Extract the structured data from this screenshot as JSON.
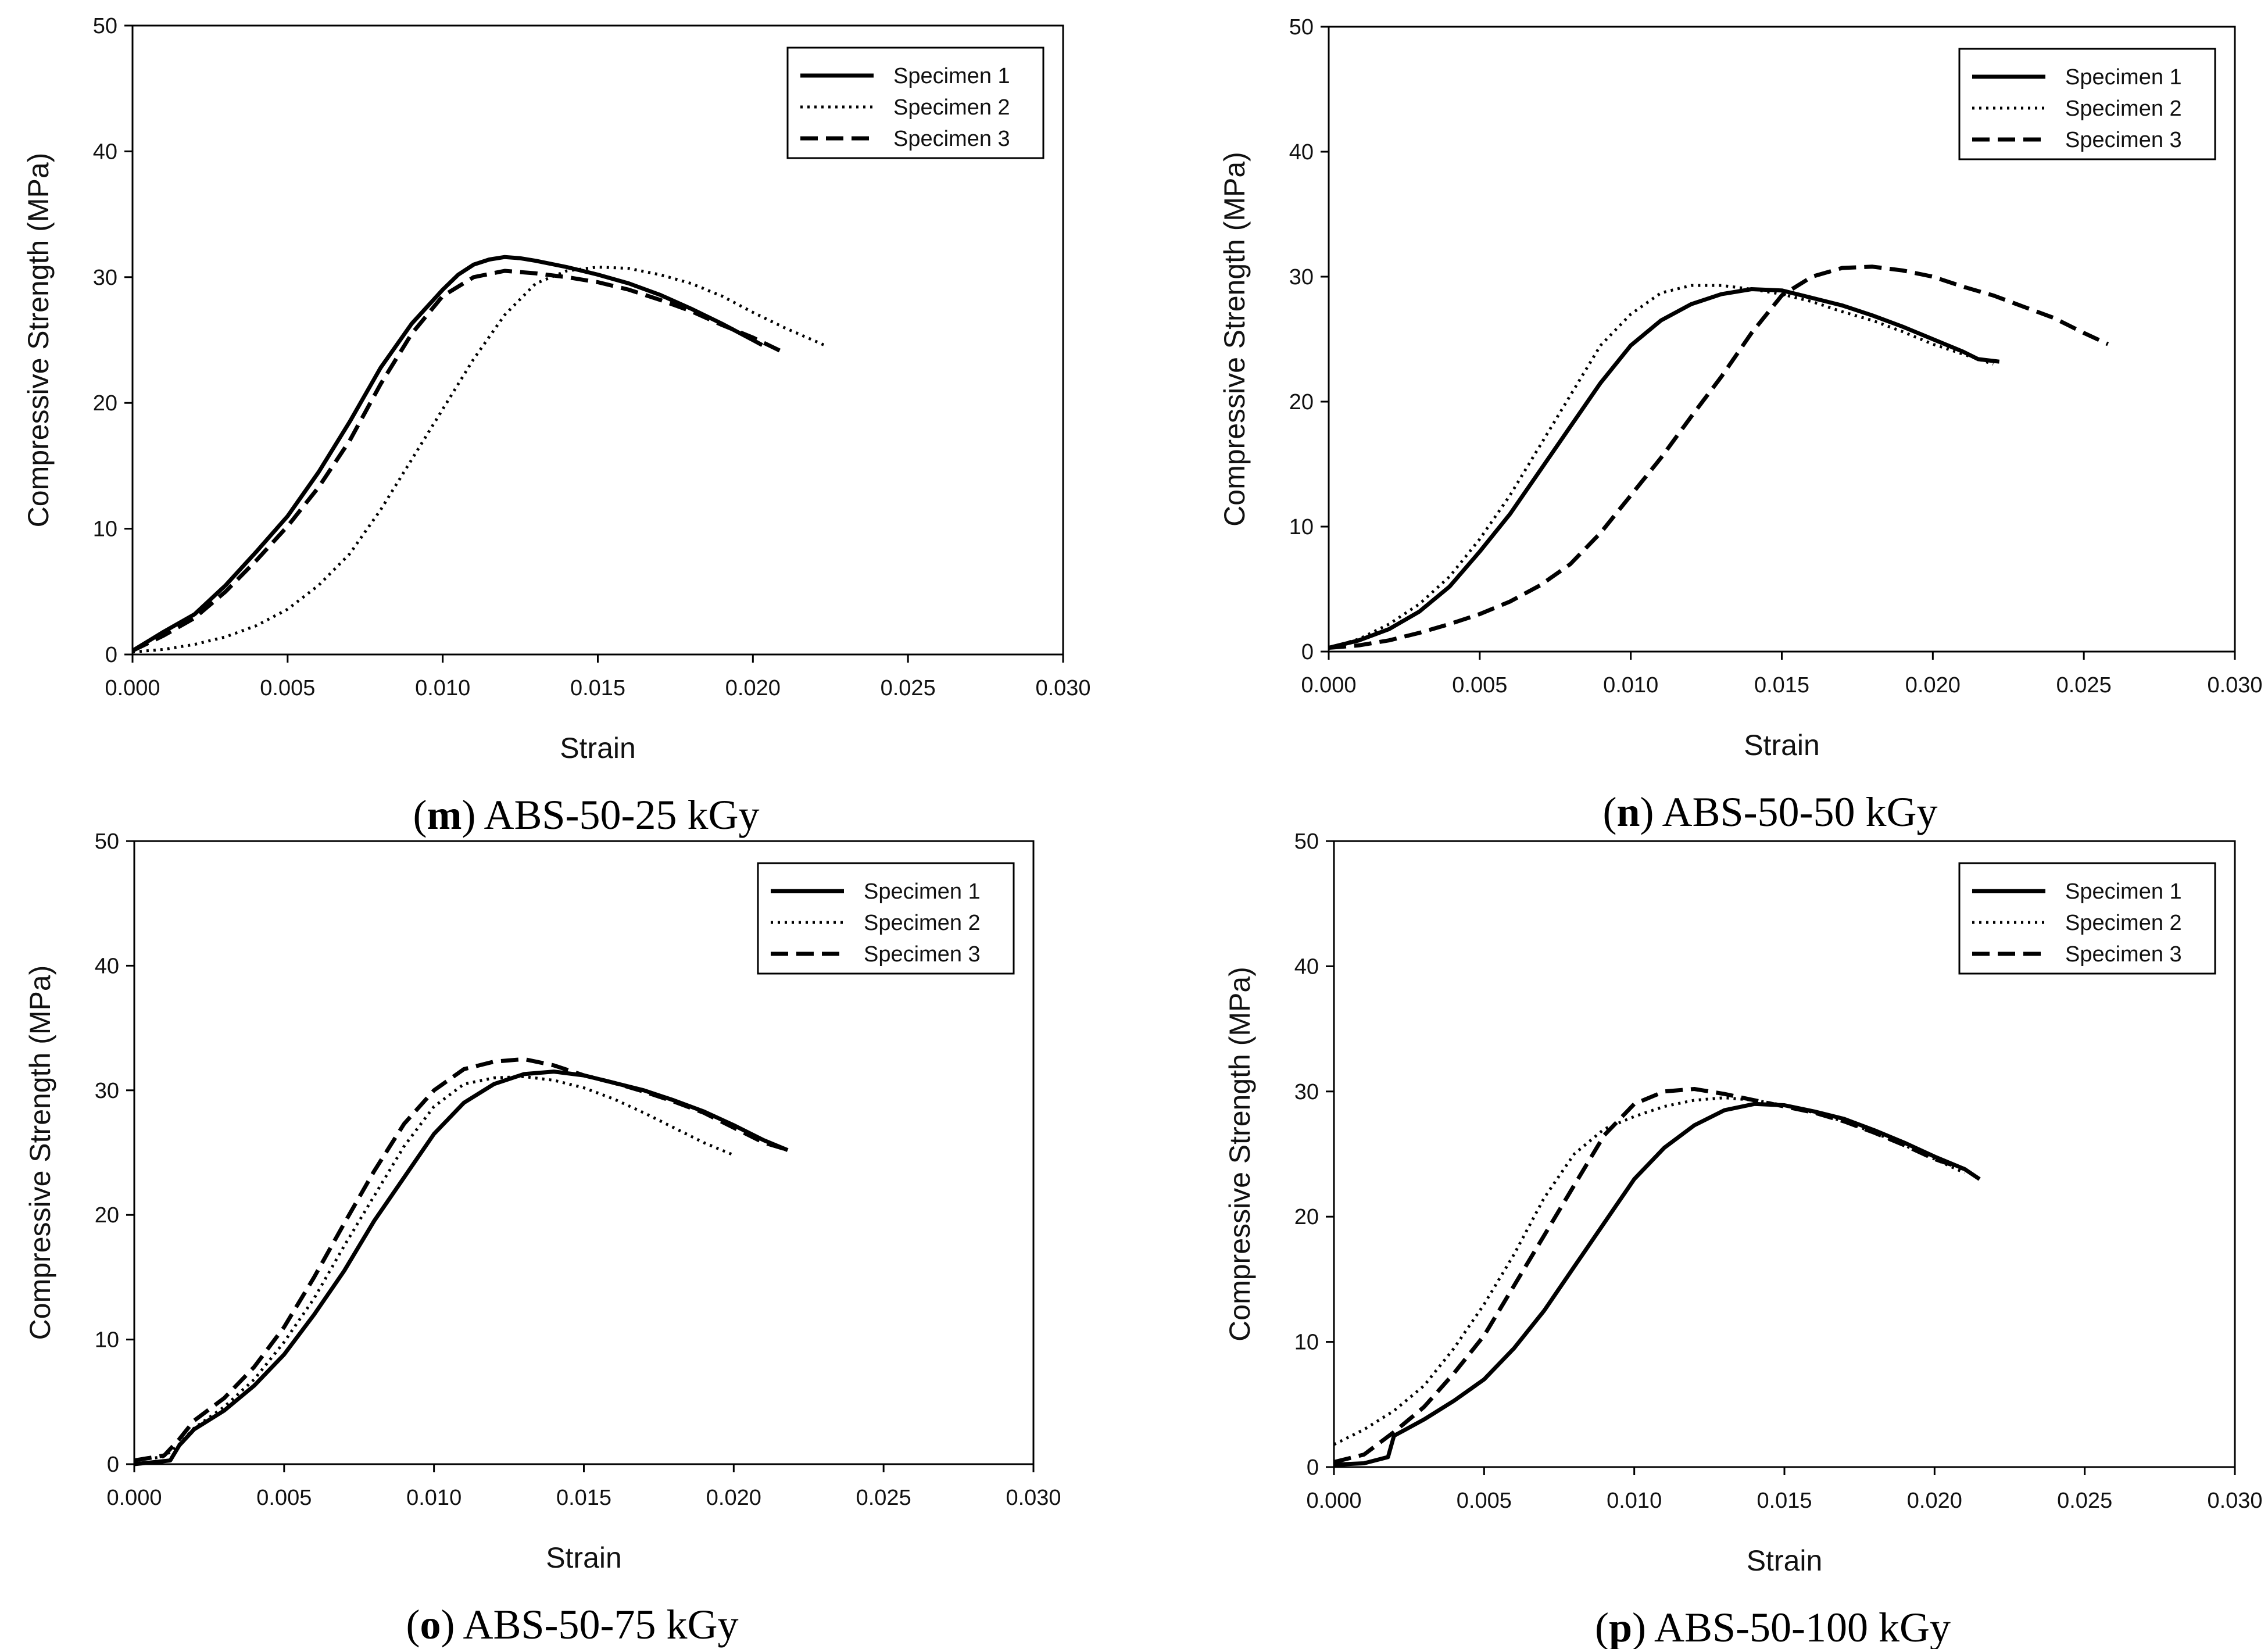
{
  "chart_data": [
    {
      "type": "line",
      "panel_letter": "m",
      "caption": "ABS-50-25 kGy",
      "xlabel": "Strain",
      "ylabel": "Compressive Strength (MPa)",
      "xlim": [
        0,
        0.03
      ],
      "ylim": [
        0,
        50
      ],
      "xticks": [
        "0.000",
        "0.005",
        "0.010",
        "0.015",
        "0.020",
        "0.025",
        "0.030"
      ],
      "yticks": [
        "0",
        "10",
        "20",
        "30",
        "40",
        "50"
      ],
      "legend_position": "top-right",
      "series": [
        {
          "name": "Specimen 1",
          "style": "solid",
          "x": [
            0,
            0.001,
            0.002,
            0.003,
            0.004,
            0.005,
            0.006,
            0.007,
            0.008,
            0.009,
            0.01,
            0.0105,
            0.011,
            0.0115,
            0.012,
            0.0125,
            0.013,
            0.014,
            0.015,
            0.016,
            0.017,
            0.018,
            0.019,
            0.02,
            0.0203
          ],
          "y": [
            0.3,
            1.8,
            3.2,
            5.5,
            8.2,
            11.0,
            14.5,
            18.5,
            22.8,
            26.3,
            29.0,
            30.2,
            31.0,
            31.4,
            31.6,
            31.5,
            31.3,
            30.8,
            30.2,
            29.5,
            28.6,
            27.5,
            26.3,
            25.0,
            24.6
          ]
        },
        {
          "name": "Specimen 2",
          "style": "dotted",
          "x": [
            0,
            0.001,
            0.002,
            0.003,
            0.004,
            0.005,
            0.006,
            0.007,
            0.008,
            0.009,
            0.01,
            0.011,
            0.012,
            0.013,
            0.014,
            0.015,
            0.016,
            0.017,
            0.018,
            0.019,
            0.02,
            0.021,
            0.0223
          ],
          "y": [
            0.2,
            0.4,
            0.8,
            1.4,
            2.3,
            3.6,
            5.5,
            8.0,
            11.5,
            15.5,
            19.5,
            23.5,
            27.0,
            29.5,
            30.5,
            30.8,
            30.7,
            30.2,
            29.5,
            28.5,
            27.2,
            26.0,
            24.6
          ]
        },
        {
          "name": "Specimen 3",
          "style": "dashed",
          "x": [
            0,
            0.001,
            0.002,
            0.003,
            0.004,
            0.005,
            0.006,
            0.007,
            0.008,
            0.009,
            0.01,
            0.011,
            0.012,
            0.013,
            0.014,
            0.015,
            0.016,
            0.017,
            0.018,
            0.019,
            0.02,
            0.021
          ],
          "y": [
            0.3,
            1.5,
            2.9,
            5.0,
            7.5,
            10.2,
            13.3,
            17.0,
            21.5,
            25.5,
            28.5,
            30.0,
            30.5,
            30.3,
            30.0,
            29.6,
            29.0,
            28.2,
            27.3,
            26.2,
            25.2,
            24.0
          ]
        }
      ]
    },
    {
      "type": "line",
      "panel_letter": "n",
      "caption": "ABS-50-50 kGy",
      "xlabel": "Strain",
      "ylabel": "Compressive Strength (MPa)",
      "xlim": [
        0,
        0.03
      ],
      "ylim": [
        0,
        50
      ],
      "xticks": [
        "0.000",
        "0.005",
        "0.010",
        "0.015",
        "0.020",
        "0.025",
        "0.030"
      ],
      "yticks": [
        "0",
        "10",
        "20",
        "30",
        "40",
        "50"
      ],
      "legend_position": "top-right",
      "series": [
        {
          "name": "Specimen 1",
          "style": "solid",
          "x": [
            0,
            0.001,
            0.002,
            0.003,
            0.004,
            0.005,
            0.006,
            0.007,
            0.008,
            0.009,
            0.01,
            0.011,
            0.012,
            0.013,
            0.014,
            0.015,
            0.016,
            0.017,
            0.018,
            0.019,
            0.02,
            0.021,
            0.0215,
            0.0222
          ],
          "y": [
            0.3,
            0.9,
            1.8,
            3.2,
            5.2,
            8.0,
            11.0,
            14.5,
            18.0,
            21.5,
            24.5,
            26.5,
            27.8,
            28.6,
            29.0,
            28.9,
            28.3,
            27.7,
            26.9,
            26.0,
            25.0,
            24.0,
            23.4,
            23.2
          ]
        },
        {
          "name": "Specimen 2",
          "style": "dotted",
          "x": [
            0,
            0.001,
            0.002,
            0.003,
            0.004,
            0.005,
            0.006,
            0.007,
            0.008,
            0.009,
            0.01,
            0.011,
            0.012,
            0.013,
            0.014,
            0.015,
            0.016,
            0.017,
            0.018,
            0.019,
            0.02,
            0.021,
            0.022
          ],
          "y": [
            0.3,
            1.0,
            2.2,
            3.8,
            6.0,
            9.0,
            12.5,
            16.5,
            20.5,
            24.5,
            27.0,
            28.7,
            29.3,
            29.3,
            29.0,
            28.6,
            28.0,
            27.2,
            26.5,
            25.6,
            24.6,
            23.8,
            23.0
          ]
        },
        {
          "name": "Specimen 3",
          "style": "dashed",
          "x": [
            0,
            0.001,
            0.002,
            0.003,
            0.004,
            0.005,
            0.006,
            0.007,
            0.008,
            0.009,
            0.01,
            0.011,
            0.012,
            0.013,
            0.014,
            0.015,
            0.016,
            0.017,
            0.018,
            0.019,
            0.02,
            0.021,
            0.022,
            0.023,
            0.024,
            0.025,
            0.0258
          ],
          "y": [
            0.3,
            0.5,
            0.9,
            1.5,
            2.2,
            3.0,
            4.0,
            5.3,
            7.0,
            9.5,
            12.5,
            15.5,
            18.8,
            22.0,
            25.5,
            28.5,
            30.0,
            30.7,
            30.8,
            30.5,
            30.0,
            29.2,
            28.5,
            27.6,
            26.7,
            25.5,
            24.6
          ]
        }
      ]
    },
    {
      "type": "line",
      "panel_letter": "o",
      "caption": "ABS-50-75 kGy",
      "xlabel": "Strain",
      "ylabel": "Compressive Strength (MPa)",
      "xlim": [
        0,
        0.03
      ],
      "ylim": [
        0,
        50
      ],
      "xticks": [
        "0.000",
        "0.005",
        "0.010",
        "0.015",
        "0.020",
        "0.025",
        "0.030"
      ],
      "yticks": [
        "0",
        "10",
        "20",
        "30",
        "40",
        "50"
      ],
      "legend_position": "top-right",
      "series": [
        {
          "name": "Specimen 1",
          "style": "solid",
          "x": [
            0,
            0.0012,
            0.0015,
            0.002,
            0.003,
            0.004,
            0.005,
            0.006,
            0.007,
            0.008,
            0.009,
            0.01,
            0.011,
            0.012,
            0.013,
            0.014,
            0.015,
            0.016,
            0.017,
            0.018,
            0.019,
            0.02,
            0.021,
            0.0218
          ],
          "y": [
            0,
            0.3,
            1.5,
            2.8,
            4.3,
            6.3,
            8.8,
            12.0,
            15.5,
            19.5,
            23.0,
            26.5,
            29.0,
            30.5,
            31.3,
            31.5,
            31.2,
            30.6,
            30.0,
            29.2,
            28.3,
            27.2,
            26.0,
            25.2
          ]
        },
        {
          "name": "Specimen 2",
          "style": "dotted",
          "x": [
            0,
            0.001,
            0.0015,
            0.002,
            0.003,
            0.004,
            0.005,
            0.006,
            0.007,
            0.008,
            0.009,
            0.01,
            0.011,
            0.012,
            0.013,
            0.014,
            0.015,
            0.016,
            0.017,
            0.018,
            0.019,
            0.02
          ],
          "y": [
            0.3,
            0.6,
            1.6,
            2.9,
            4.6,
            6.8,
            9.8,
            13.3,
            17.5,
            21.5,
            25.5,
            28.7,
            30.5,
            31.0,
            31.1,
            30.8,
            30.2,
            29.3,
            28.2,
            27.0,
            25.8,
            24.8
          ]
        },
        {
          "name": "Specimen 3",
          "style": "dashed",
          "x": [
            0,
            0.001,
            0.0015,
            0.002,
            0.003,
            0.004,
            0.005,
            0.006,
            0.007,
            0.008,
            0.009,
            0.01,
            0.011,
            0.012,
            0.013,
            0.014,
            0.015,
            0.016,
            0.017,
            0.018,
            0.019,
            0.02,
            0.021,
            0.0217
          ],
          "y": [
            0.3,
            0.7,
            2.0,
            3.5,
            5.3,
            7.8,
            11.0,
            15.0,
            19.3,
            23.5,
            27.3,
            30.0,
            31.7,
            32.3,
            32.5,
            32.0,
            31.2,
            30.6,
            29.9,
            29.1,
            28.2,
            27.0,
            25.8,
            25.3
          ]
        }
      ]
    },
    {
      "type": "line",
      "panel_letter": "p",
      "caption": "ABS-50-100 kGy",
      "xlabel": "Strain",
      "ylabel": "Compressive Strength (MPa)",
      "xlim": [
        0,
        0.03
      ],
      "ylim": [
        0,
        50
      ],
      "xticks": [
        "0.000",
        "0.005",
        "0.010",
        "0.015",
        "0.020",
        "0.025",
        "0.030"
      ],
      "yticks": [
        "0",
        "10",
        "20",
        "30",
        "40",
        "50"
      ],
      "legend_position": "top-right",
      "series": [
        {
          "name": "Specimen 1",
          "style": "solid",
          "x": [
            0,
            0.001,
            0.0018,
            0.002,
            0.003,
            0.004,
            0.005,
            0.006,
            0.007,
            0.008,
            0.009,
            0.01,
            0.011,
            0.012,
            0.013,
            0.014,
            0.015,
            0.016,
            0.017,
            0.018,
            0.019,
            0.02,
            0.021,
            0.0215
          ],
          "y": [
            0.2,
            0.3,
            0.8,
            2.5,
            3.8,
            5.3,
            7.0,
            9.5,
            12.5,
            16.0,
            19.5,
            23.0,
            25.5,
            27.3,
            28.5,
            29.0,
            28.9,
            28.4,
            27.8,
            26.9,
            25.9,
            24.8,
            23.8,
            23.0
          ]
        },
        {
          "name": "Specimen 2",
          "style": "dotted",
          "x": [
            0,
            0.001,
            0.002,
            0.003,
            0.004,
            0.005,
            0.006,
            0.007,
            0.008,
            0.009,
            0.01,
            0.011,
            0.012,
            0.013,
            0.014,
            0.015,
            0.016,
            0.017,
            0.018,
            0.019,
            0.02,
            0.021
          ],
          "y": [
            1.8,
            3.0,
            4.5,
            6.5,
            9.5,
            13.0,
            17.0,
            21.5,
            25.0,
            27.0,
            28.0,
            28.8,
            29.3,
            29.5,
            29.3,
            28.9,
            28.3,
            27.6,
            26.7,
            25.7,
            24.6,
            23.5
          ]
        },
        {
          "name": "Specimen 3",
          "style": "dashed",
          "x": [
            0,
            0.001,
            0.002,
            0.003,
            0.004,
            0.005,
            0.006,
            0.007,
            0.008,
            0.009,
            0.01,
            0.011,
            0.012,
            0.013,
            0.014,
            0.015,
            0.016,
            0.017,
            0.018,
            0.019,
            0.02,
            0.021
          ],
          "y": [
            0.4,
            1.0,
            2.8,
            4.8,
            7.5,
            10.5,
            14.5,
            18.5,
            22.5,
            26.5,
            29.0,
            30.0,
            30.2,
            29.8,
            29.3,
            28.8,
            28.3,
            27.6,
            26.7,
            25.7,
            24.6,
            23.8
          ]
        }
      ]
    }
  ]
}
